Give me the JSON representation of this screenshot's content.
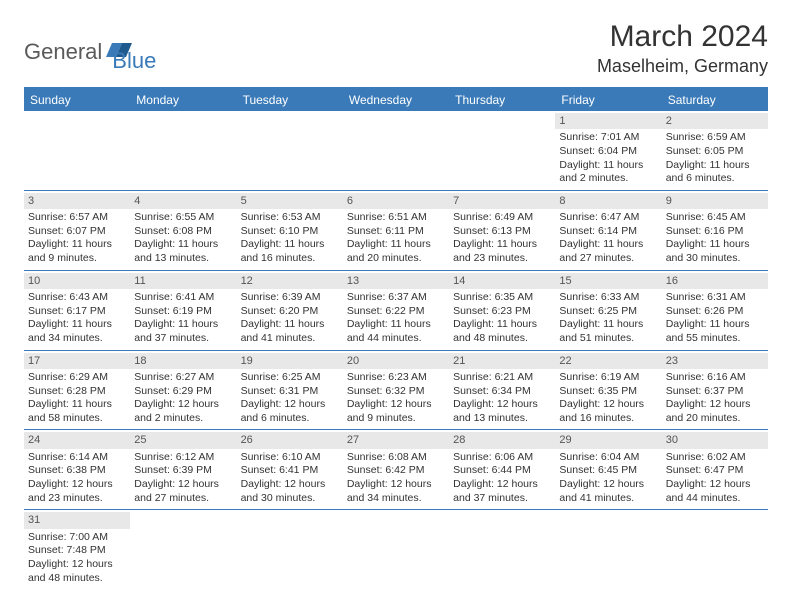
{
  "logo": {
    "text1": "General",
    "text2": "Blue"
  },
  "title": "March 2024",
  "location": "Maselheim, Germany",
  "colors": {
    "header_bg": "#3a7ab8",
    "daynum_bg": "#e8e8e8",
    "text": "#333333",
    "logo_gray": "#5a5a5a",
    "logo_blue": "#3a7ab8"
  },
  "weekdays": [
    "Sunday",
    "Monday",
    "Tuesday",
    "Wednesday",
    "Thursday",
    "Friday",
    "Saturday"
  ],
  "weeks": [
    [
      null,
      null,
      null,
      null,
      null,
      {
        "n": "1",
        "sunrise": "Sunrise: 7:01 AM",
        "sunset": "Sunset: 6:04 PM",
        "day1": "Daylight: 11 hours",
        "day2": "and 2 minutes."
      },
      {
        "n": "2",
        "sunrise": "Sunrise: 6:59 AM",
        "sunset": "Sunset: 6:05 PM",
        "day1": "Daylight: 11 hours",
        "day2": "and 6 minutes."
      }
    ],
    [
      {
        "n": "3",
        "sunrise": "Sunrise: 6:57 AM",
        "sunset": "Sunset: 6:07 PM",
        "day1": "Daylight: 11 hours",
        "day2": "and 9 minutes."
      },
      {
        "n": "4",
        "sunrise": "Sunrise: 6:55 AM",
        "sunset": "Sunset: 6:08 PM",
        "day1": "Daylight: 11 hours",
        "day2": "and 13 minutes."
      },
      {
        "n": "5",
        "sunrise": "Sunrise: 6:53 AM",
        "sunset": "Sunset: 6:10 PM",
        "day1": "Daylight: 11 hours",
        "day2": "and 16 minutes."
      },
      {
        "n": "6",
        "sunrise": "Sunrise: 6:51 AM",
        "sunset": "Sunset: 6:11 PM",
        "day1": "Daylight: 11 hours",
        "day2": "and 20 minutes."
      },
      {
        "n": "7",
        "sunrise": "Sunrise: 6:49 AM",
        "sunset": "Sunset: 6:13 PM",
        "day1": "Daylight: 11 hours",
        "day2": "and 23 minutes."
      },
      {
        "n": "8",
        "sunrise": "Sunrise: 6:47 AM",
        "sunset": "Sunset: 6:14 PM",
        "day1": "Daylight: 11 hours",
        "day2": "and 27 minutes."
      },
      {
        "n": "9",
        "sunrise": "Sunrise: 6:45 AM",
        "sunset": "Sunset: 6:16 PM",
        "day1": "Daylight: 11 hours",
        "day2": "and 30 minutes."
      }
    ],
    [
      {
        "n": "10",
        "sunrise": "Sunrise: 6:43 AM",
        "sunset": "Sunset: 6:17 PM",
        "day1": "Daylight: 11 hours",
        "day2": "and 34 minutes."
      },
      {
        "n": "11",
        "sunrise": "Sunrise: 6:41 AM",
        "sunset": "Sunset: 6:19 PM",
        "day1": "Daylight: 11 hours",
        "day2": "and 37 minutes."
      },
      {
        "n": "12",
        "sunrise": "Sunrise: 6:39 AM",
        "sunset": "Sunset: 6:20 PM",
        "day1": "Daylight: 11 hours",
        "day2": "and 41 minutes."
      },
      {
        "n": "13",
        "sunrise": "Sunrise: 6:37 AM",
        "sunset": "Sunset: 6:22 PM",
        "day1": "Daylight: 11 hours",
        "day2": "and 44 minutes."
      },
      {
        "n": "14",
        "sunrise": "Sunrise: 6:35 AM",
        "sunset": "Sunset: 6:23 PM",
        "day1": "Daylight: 11 hours",
        "day2": "and 48 minutes."
      },
      {
        "n": "15",
        "sunrise": "Sunrise: 6:33 AM",
        "sunset": "Sunset: 6:25 PM",
        "day1": "Daylight: 11 hours",
        "day2": "and 51 minutes."
      },
      {
        "n": "16",
        "sunrise": "Sunrise: 6:31 AM",
        "sunset": "Sunset: 6:26 PM",
        "day1": "Daylight: 11 hours",
        "day2": "and 55 minutes."
      }
    ],
    [
      {
        "n": "17",
        "sunrise": "Sunrise: 6:29 AM",
        "sunset": "Sunset: 6:28 PM",
        "day1": "Daylight: 11 hours",
        "day2": "and 58 minutes."
      },
      {
        "n": "18",
        "sunrise": "Sunrise: 6:27 AM",
        "sunset": "Sunset: 6:29 PM",
        "day1": "Daylight: 12 hours",
        "day2": "and 2 minutes."
      },
      {
        "n": "19",
        "sunrise": "Sunrise: 6:25 AM",
        "sunset": "Sunset: 6:31 PM",
        "day1": "Daylight: 12 hours",
        "day2": "and 6 minutes."
      },
      {
        "n": "20",
        "sunrise": "Sunrise: 6:23 AM",
        "sunset": "Sunset: 6:32 PM",
        "day1": "Daylight: 12 hours",
        "day2": "and 9 minutes."
      },
      {
        "n": "21",
        "sunrise": "Sunrise: 6:21 AM",
        "sunset": "Sunset: 6:34 PM",
        "day1": "Daylight: 12 hours",
        "day2": "and 13 minutes."
      },
      {
        "n": "22",
        "sunrise": "Sunrise: 6:19 AM",
        "sunset": "Sunset: 6:35 PM",
        "day1": "Daylight: 12 hours",
        "day2": "and 16 minutes."
      },
      {
        "n": "23",
        "sunrise": "Sunrise: 6:16 AM",
        "sunset": "Sunset: 6:37 PM",
        "day1": "Daylight: 12 hours",
        "day2": "and 20 minutes."
      }
    ],
    [
      {
        "n": "24",
        "sunrise": "Sunrise: 6:14 AM",
        "sunset": "Sunset: 6:38 PM",
        "day1": "Daylight: 12 hours",
        "day2": "and 23 minutes."
      },
      {
        "n": "25",
        "sunrise": "Sunrise: 6:12 AM",
        "sunset": "Sunset: 6:39 PM",
        "day1": "Daylight: 12 hours",
        "day2": "and 27 minutes."
      },
      {
        "n": "26",
        "sunrise": "Sunrise: 6:10 AM",
        "sunset": "Sunset: 6:41 PM",
        "day1": "Daylight: 12 hours",
        "day2": "and 30 minutes."
      },
      {
        "n": "27",
        "sunrise": "Sunrise: 6:08 AM",
        "sunset": "Sunset: 6:42 PM",
        "day1": "Daylight: 12 hours",
        "day2": "and 34 minutes."
      },
      {
        "n": "28",
        "sunrise": "Sunrise: 6:06 AM",
        "sunset": "Sunset: 6:44 PM",
        "day1": "Daylight: 12 hours",
        "day2": "and 37 minutes."
      },
      {
        "n": "29",
        "sunrise": "Sunrise: 6:04 AM",
        "sunset": "Sunset: 6:45 PM",
        "day1": "Daylight: 12 hours",
        "day2": "and 41 minutes."
      },
      {
        "n": "30",
        "sunrise": "Sunrise: 6:02 AM",
        "sunset": "Sunset: 6:47 PM",
        "day1": "Daylight: 12 hours",
        "day2": "and 44 minutes."
      }
    ],
    [
      {
        "n": "31",
        "sunrise": "Sunrise: 7:00 AM",
        "sunset": "Sunset: 7:48 PM",
        "day1": "Daylight: 12 hours",
        "day2": "and 48 minutes."
      },
      null,
      null,
      null,
      null,
      null,
      null
    ]
  ]
}
